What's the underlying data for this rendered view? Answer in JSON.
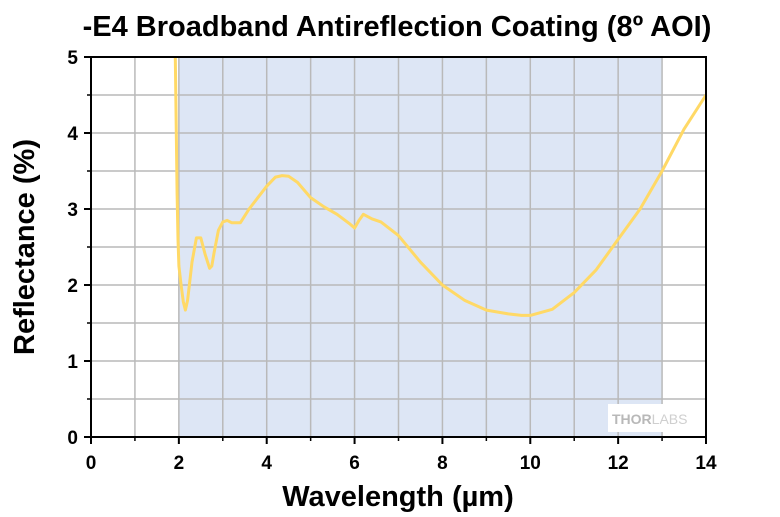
{
  "chart_data": {
    "type": "line",
    "title": "-E4 Broadband Antireflection Coating (8º AOI)",
    "xlabel": "Wavelength (µm)",
    "ylabel": "Reflectance (%)",
    "xlim": [
      0,
      14
    ],
    "ylim": [
      0,
      5
    ],
    "x_ticks": [
      "0",
      "2",
      "4",
      "6",
      "8",
      "10",
      "12",
      "14"
    ],
    "y_ticks": [
      "0",
      "1",
      "2",
      "3",
      "4",
      "5"
    ],
    "grid": true,
    "highlight_band": {
      "x_start": 2,
      "x_end": 13,
      "color": "#dde6f5"
    },
    "series": [
      {
        "color": "#ffd966",
        "x": [
          1.92,
          1.94,
          1.96,
          1.98,
          2.0,
          2.05,
          2.1,
          2.15,
          2.2,
          2.3,
          2.4,
          2.5,
          2.6,
          2.7,
          2.75,
          2.8,
          2.9,
          3.0,
          3.1,
          3.2,
          3.4,
          3.6,
          3.8,
          4.0,
          4.2,
          4.35,
          4.5,
          4.7,
          5.0,
          5.3,
          5.6,
          5.9,
          6.0,
          6.1,
          6.2,
          6.4,
          6.6,
          7.0,
          7.5,
          8.0,
          8.5,
          9.0,
          9.5,
          9.8,
          10.0,
          10.5,
          11.0,
          11.5,
          12.0,
          12.5,
          13.0,
          13.5,
          14.0
        ],
        "y": [
          5.0,
          4.1,
          3.2,
          2.6,
          2.25,
          2.0,
          1.78,
          1.67,
          1.8,
          2.3,
          2.62,
          2.62,
          2.4,
          2.22,
          2.25,
          2.42,
          2.72,
          2.83,
          2.85,
          2.82,
          2.82,
          3.0,
          3.15,
          3.3,
          3.42,
          3.44,
          3.43,
          3.35,
          3.15,
          3.03,
          2.93,
          2.8,
          2.75,
          2.85,
          2.93,
          2.87,
          2.83,
          2.65,
          2.3,
          2.0,
          1.8,
          1.67,
          1.62,
          1.6,
          1.6,
          1.68,
          1.9,
          2.2,
          2.6,
          3.0,
          3.5,
          4.05,
          4.5
        ]
      }
    ]
  },
  "watermark": {
    "thor": "THOR",
    "labs": "LABS"
  }
}
